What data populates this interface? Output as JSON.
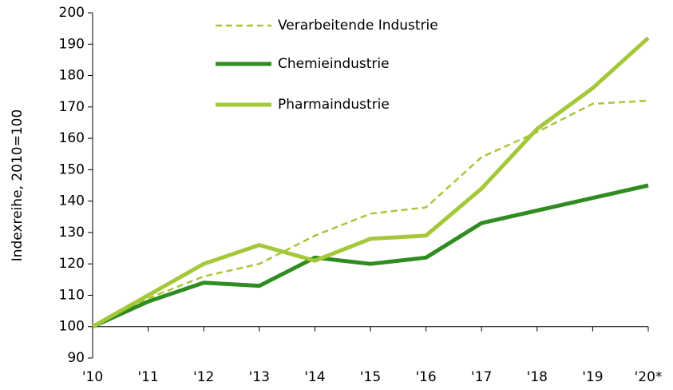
{
  "chart_data": {
    "type": "line",
    "y_axis_label": "Indexreihe, 2010=100",
    "categories": [
      "'10",
      "'11",
      "'12",
      "'13",
      "'14",
      "'15",
      "'16",
      "'17",
      "'18",
      "'19",
      "'20*"
    ],
    "series": [
      {
        "name": "Verarbeitende Industrie",
        "color": "#a6c83a",
        "dashed": true,
        "values": [
          100,
          109,
          116,
          120,
          129,
          136,
          138,
          154,
          162,
          171,
          172
        ]
      },
      {
        "name": "Chemieindustrie",
        "color": "#2f8c1f",
        "dashed": false,
        "values": [
          100,
          108,
          114,
          113,
          122,
          120,
          122,
          133,
          137,
          141,
          145
        ]
      },
      {
        "name": "Pharmaindustrie",
        "color": "#a5c83a",
        "dashed": false,
        "values": [
          100,
          110,
          120,
          126,
          121,
          128,
          129,
          144,
          163,
          176,
          192
        ]
      }
    ],
    "ylim": [
      90,
      200
    ],
    "yticks": [
      90,
      100,
      110,
      120,
      130,
      140,
      150,
      160,
      170,
      180,
      190,
      200
    ],
    "x_axis_crosses": 100,
    "grid": false,
    "legend": "top"
  }
}
